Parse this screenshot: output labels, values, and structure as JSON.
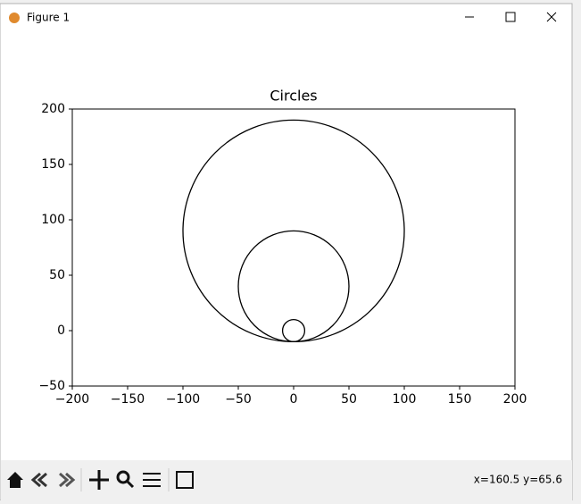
{
  "window": {
    "title": "Figure 1",
    "status": "x=160.5 y=65.6"
  },
  "chart_data": {
    "type": "circle",
    "title": "Circles",
    "series": [
      {
        "color": "#000000",
        "x": [
          0,
          0,
          0
        ],
        "values": [
          90,
          40,
          0
        ],
        "radius": [
          100,
          50,
          10
        ]
      }
    ],
    "xlim": [
      -200,
      200
    ],
    "ylim": [
      -50,
      200
    ],
    "xticks": [
      {
        "value": -200,
        "label": "−200"
      },
      {
        "value": -150,
        "label": "−150"
      },
      {
        "value": -100,
        "label": "−100"
      },
      {
        "value": -50,
        "label": "−50"
      },
      0,
      50,
      100,
      150,
      200
    ],
    "yticks": [
      {
        "value": -50,
        "label": "−50"
      },
      0,
      50,
      100,
      150,
      200
    ],
    "grid": false
  }
}
